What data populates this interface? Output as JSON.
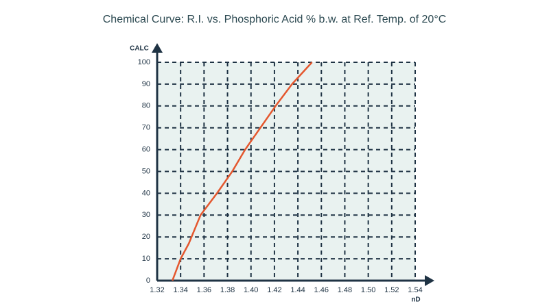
{
  "chart_data": {
    "type": "line",
    "title": "Chemical Curve: R.I. vs. Phosphoric Acid % b.w. at Ref. Temp. of 20°C",
    "xlabel": "nD",
    "ylabel": "CALC",
    "x": [
      1.333,
      1.34,
      1.347,
      1.357,
      1.371,
      1.384,
      1.395,
      1.408,
      1.421,
      1.435,
      1.452
    ],
    "values": [
      0,
      10,
      17,
      30,
      40,
      50,
      60,
      70,
      80,
      90,
      100
    ],
    "color": "#e4572e",
    "xlim": [
      1.32,
      1.54
    ],
    "xticks": [
      1.32,
      1.34,
      1.36,
      1.38,
      {
        "value": 1.4,
        "label": "1.40"
      },
      1.42,
      1.44,
      1.46,
      1.48,
      {
        "value": 1.5,
        "label": "1.50"
      },
      1.52,
      1.54
    ],
    "ylim": [
      0,
      100
    ],
    "yticks": [
      0,
      10,
      20,
      30,
      40,
      50,
      60,
      70,
      80,
      90,
      100
    ],
    "grid": true
  }
}
